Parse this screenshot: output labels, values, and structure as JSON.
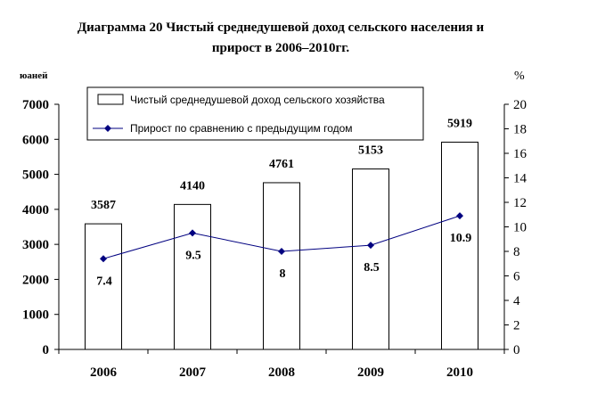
{
  "chart_data": {
    "type": "bar+line",
    "title_line1": "Диаграмма 20 Чистый среднедушевой доход сельского населения и",
    "title_line2": "прирост в 2006–2010гг.",
    "y_left_unit": "юаней",
    "y_right_unit": "%",
    "categories": [
      "2006",
      "2007",
      "2008",
      "2009",
      "2010"
    ],
    "series": [
      {
        "name": "Чистый среднедушевой доход сельского хозяйства",
        "kind": "bar",
        "axis": "left",
        "values": [
          3587,
          4140,
          4761,
          5153,
          5919
        ],
        "labels": [
          "3587",
          "4140",
          "4761",
          "5153",
          "5919"
        ]
      },
      {
        "name": "Прирост по сравнению с предыдущим годом",
        "kind": "line",
        "axis": "right",
        "values": [
          7.4,
          9.5,
          8,
          8.5,
          10.9
        ],
        "labels": [
          "7.4",
          "9.5",
          "8",
          "8.5",
          "10.9"
        ],
        "color": "#000080"
      }
    ],
    "y_left": {
      "min": 0,
      "max": 7000,
      "step": 1000
    },
    "y_right": {
      "min": 0,
      "max": 20,
      "step": 2
    },
    "legend_position": "top-center",
    "grid": false
  }
}
